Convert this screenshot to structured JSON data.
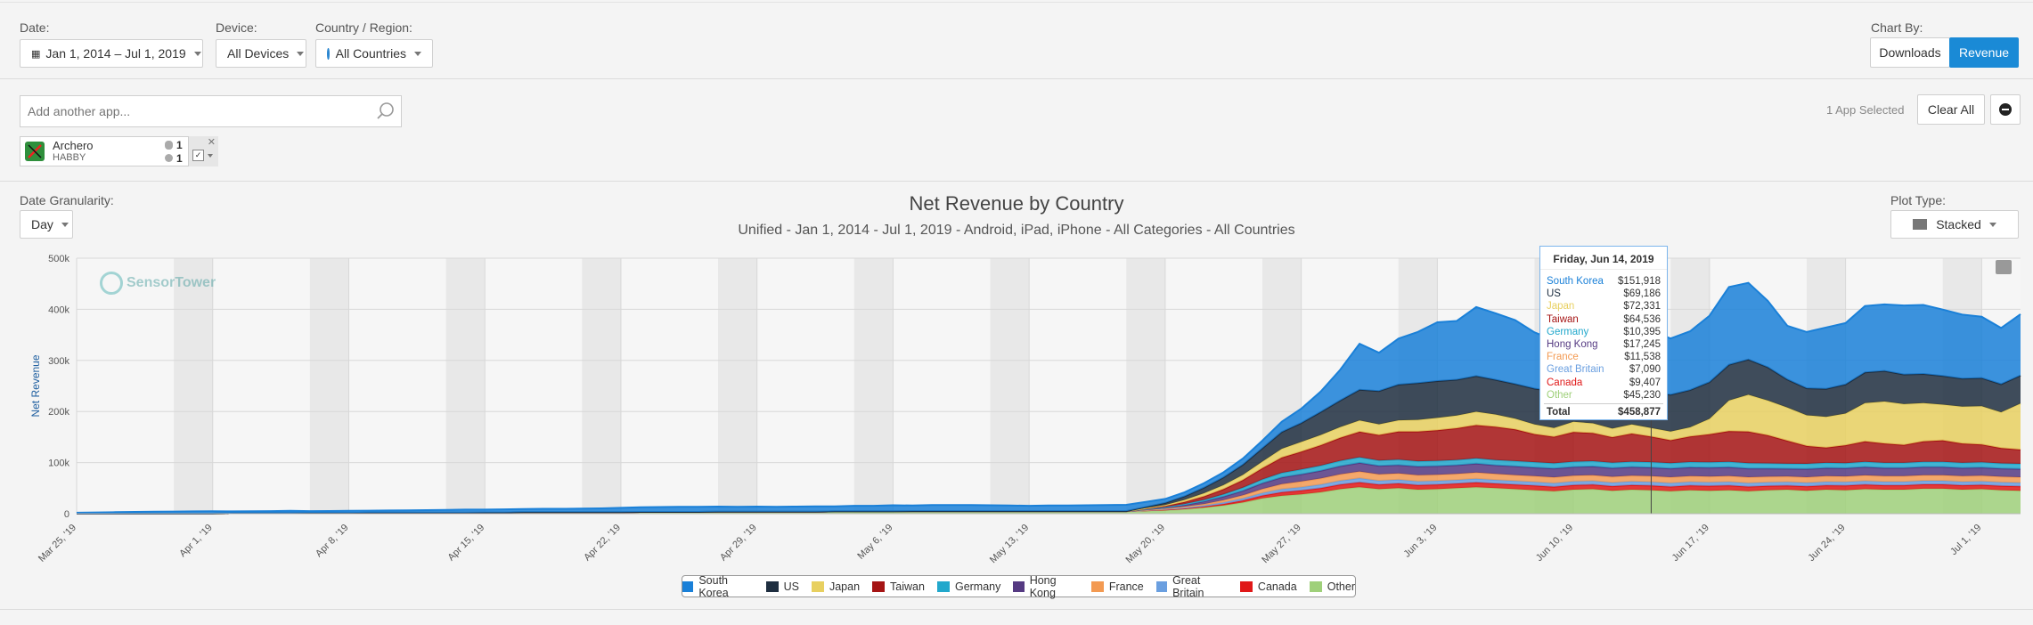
{
  "filters": {
    "date_label": "Date:",
    "date_value": "Jan 1, 2014 – Jul 1, 2019",
    "device_label": "Device:",
    "device_value": "All Devices",
    "country_label": "Country / Region:",
    "country_value": "All Countries",
    "chart_by_label": "Chart By:",
    "downloads_label": "Downloads",
    "revenue_label": "Revenue"
  },
  "search": {
    "placeholder": "Add another app...",
    "apps_selected": "1 App Selected",
    "clear_all": "Clear All"
  },
  "app": {
    "name": "Archero",
    "publisher": "HABBY",
    "ios_count": "1",
    "android_count": "1"
  },
  "granularity": {
    "label": "Date Granularity:",
    "value": "Day"
  },
  "plot_type": {
    "label": "Plot Type:",
    "value": "Stacked"
  },
  "title": "Net Revenue by Country",
  "subtitle": "Unified - Jan 1, 2014 - Jul 1, 2019 - Android, iPad, iPhone - All Categories - All Countries",
  "watermark": "SensorTower",
  "tooltip": {
    "date": "Friday, Jun 14, 2019",
    "rows": [
      {
        "name": "South Korea",
        "value": "$151,918"
      },
      {
        "name": "US",
        "value": "$69,186"
      },
      {
        "name": "Japan",
        "value": "$72,331"
      },
      {
        "name": "Taiwan",
        "value": "$64,536"
      },
      {
        "name": "Germany",
        "value": "$10,395"
      },
      {
        "name": "Hong Kong",
        "value": "$17,245"
      },
      {
        "name": "France",
        "value": "$11,538"
      },
      {
        "name": "Great Britain",
        "value": "$7,090"
      },
      {
        "name": "Canada",
        "value": "$9,407"
      },
      {
        "name": "Other",
        "value": "$45,230"
      }
    ],
    "total_label": "Total",
    "total_value": "$458,877"
  },
  "colors": {
    "South Korea": "#1a80d8",
    "US": "#1e2e40",
    "Japan": "#e8d060",
    "Taiwan": "#a51414",
    "Germany": "#22a8cc",
    "Hong Kong": "#553a82",
    "France": "#f39a52",
    "Great Britain": "#6a9fe0",
    "Canada": "#e01818",
    "Other": "#9fd07a"
  },
  "chart_data": {
    "type": "area",
    "title": "Net Revenue by Country",
    "subtitle": "Unified - Jan 1, 2014 - Jul 1, 2019 - Android, iPad, iPhone - All Categories - All Countries",
    "ylabel": "Net Revenue",
    "ylim": [
      0,
      500000
    ],
    "y_ticks": [
      "0",
      "100k",
      "200k",
      "300k",
      "400k",
      "500k"
    ],
    "x_ticks": [
      "Mar 25, '19",
      "Apr 1, '19",
      "Apr 8, '19",
      "Apr 15, '19",
      "Apr 22, '19",
      "Apr 29, '19",
      "May 6, '19",
      "May 13, '19",
      "May 20, '19",
      "May 27, '19",
      "Jun 3, '19",
      "Jun 10, '19",
      "Jun 17, '19",
      "Jun 24, '19",
      "Jul 1, '19"
    ],
    "stacked": true,
    "grid": true,
    "legend_position": "bottom",
    "x_start": "2019-03-25",
    "x_end": "2019-07-01",
    "series": [
      {
        "name": "Other",
        "values": [
          0,
          0,
          0,
          0,
          0,
          0,
          0,
          0,
          1000,
          1000,
          1000,
          1000,
          1500,
          1500,
          1500,
          2000,
          2000,
          2000,
          2000,
          2000,
          2000,
          2500,
          2500,
          3000,
          3000,
          3000,
          3000,
          3000,
          3000,
          3500,
          3500,
          3500,
          3500,
          4000,
          4000,
          4000,
          4000,
          4000,
          4000,
          4500,
          4500,
          4500,
          4500,
          5000,
          5000,
          5000,
          5000,
          5000,
          5000,
          5000,
          5000,
          5000,
          5000,
          5000,
          5000,
          6000,
          7000,
          9000,
          12000,
          16000,
          22000,
          30000,
          35000,
          38000,
          42000,
          48000,
          52000,
          48000,
          50000,
          47000,
          48000,
          50000,
          52000,
          50000,
          48000,
          46000,
          44000,
          47000,
          48000,
          45000,
          47000,
          46000,
          44000,
          46000,
          45000,
          46000,
          44000,
          46000,
          47000,
          45000,
          47000,
          46000,
          48000,
          47000,
          47000,
          49000,
          49000,
          47000,
          48000,
          46000,
          45000
        ]
      },
      {
        "name": "Canada",
        "values": [
          0,
          0,
          0,
          0,
          0,
          0,
          0,
          0,
          0,
          0,
          0,
          0,
          0,
          0,
          0,
          0,
          0,
          0,
          0,
          0,
          0,
          0,
          0,
          0,
          0,
          0,
          0,
          0,
          0,
          0,
          0,
          0,
          0,
          0,
          0,
          0,
          0,
          0,
          0,
          0,
          0,
          0,
          0,
          0,
          0,
          0,
          0,
          0,
          0,
          0,
          0,
          0,
          0,
          0,
          0,
          500,
          1000,
          1500,
          2000,
          3000,
          4000,
          5500,
          7000,
          7500,
          8000,
          9000,
          9500,
          9000,
          9200,
          9000,
          9000,
          9000,
          9200,
          9000,
          9000,
          9000,
          8800,
          9000,
          9000,
          8800,
          9000,
          9000,
          9000,
          9200,
          9300,
          9400,
          9000,
          8500,
          8000,
          8500,
          8500,
          9000,
          9000,
          8500,
          8500,
          8500,
          8500,
          8500,
          8500,
          8500,
          8500
        ]
      },
      {
        "name": "Great Britain",
        "values": [
          0,
          0,
          0,
          0,
          0,
          0,
          0,
          0,
          0,
          0,
          0,
          0,
          0,
          0,
          0,
          0,
          0,
          0,
          0,
          0,
          0,
          0,
          0,
          0,
          0,
          0,
          0,
          0,
          0,
          0,
          0,
          0,
          0,
          0,
          0,
          0,
          0,
          0,
          0,
          0,
          0,
          0,
          0,
          0,
          0,
          0,
          0,
          0,
          0,
          0,
          0,
          0,
          0,
          0,
          0,
          500,
          1000,
          1500,
          2000,
          3000,
          4000,
          5000,
          6000,
          6500,
          7000,
          7500,
          8000,
          7500,
          7500,
          7300,
          7200,
          7100,
          7300,
          7000,
          7000,
          7000,
          7000,
          7000,
          7000,
          7000,
          7000,
          7000,
          7000,
          7000,
          7100,
          7000,
          7000,
          7000,
          7000,
          7000,
          7000,
          7000,
          7000,
          7000,
          7000,
          7000,
          7000,
          7000,
          7000,
          7000,
          7000
        ]
      },
      {
        "name": "France",
        "values": [
          0,
          0,
          0,
          0,
          0,
          0,
          0,
          0,
          0,
          0,
          0,
          0,
          0,
          0,
          0,
          0,
          0,
          0,
          0,
          0,
          0,
          0,
          0,
          0,
          0,
          0,
          0,
          0,
          0,
          0,
          0,
          0,
          0,
          0,
          0,
          0,
          0,
          0,
          0,
          0,
          0,
          0,
          0,
          0,
          0,
          0,
          0,
          0,
          0,
          0,
          0,
          0,
          0,
          0,
          0,
          500,
          1000,
          2000,
          3000,
          4500,
          6000,
          8000,
          10000,
          11000,
          12000,
          12500,
          13000,
          12500,
          12000,
          12000,
          12000,
          11800,
          12000,
          11800,
          11600,
          11500,
          11500,
          11500,
          11500,
          11500,
          11500,
          11500,
          11500,
          11500,
          11500,
          11500,
          11500,
          11000,
          11000,
          11000,
          11000,
          11000,
          11000,
          11000,
          11000,
          11000,
          11000,
          11000,
          11000,
          11000,
          11000
        ]
      },
      {
        "name": "Hong Kong",
        "values": [
          0,
          0,
          0,
          0,
          0,
          0,
          0,
          0,
          0,
          0,
          0,
          0,
          0,
          0,
          0,
          0,
          0,
          0,
          0,
          0,
          0,
          0,
          0,
          0,
          0,
          0,
          0,
          0,
          0,
          0,
          0,
          0,
          0,
          0,
          0,
          0,
          0,
          0,
          0,
          0,
          0,
          0,
          0,
          0,
          0,
          0,
          0,
          0,
          0,
          0,
          0,
          0,
          0,
          0,
          0,
          1000,
          2000,
          3000,
          5000,
          7000,
          9000,
          11000,
          13000,
          14000,
          15000,
          16000,
          17000,
          16500,
          16500,
          17000,
          17000,
          17000,
          17500,
          17000,
          17000,
          17000,
          17000,
          17000,
          17000,
          17000,
          17000,
          17000,
          17000,
          17000,
          17200,
          17200,
          17000,
          16000,
          15000,
          16000,
          16000,
          16000,
          16500,
          16000,
          16000,
          16000,
          16000,
          16000,
          16000,
          16000,
          16000
        ]
      },
      {
        "name": "Germany",
        "values": [
          0,
          0,
          0,
          0,
          0,
          0,
          0,
          0,
          0,
          0,
          0,
          0,
          0,
          0,
          0,
          0,
          0,
          0,
          0,
          0,
          0,
          0,
          0,
          0,
          0,
          0,
          0,
          0,
          0,
          0,
          0,
          0,
          0,
          0,
          0,
          0,
          0,
          0,
          0,
          0,
          0,
          0,
          0,
          0,
          0,
          0,
          0,
          0,
          0,
          0,
          0,
          0,
          0,
          0,
          0,
          500,
          1000,
          2000,
          3000,
          4500,
          6000,
          7500,
          9000,
          9500,
          10000,
          10500,
          11000,
          10500,
          10500,
          10400,
          10300,
          10300,
          10400,
          10300,
          10300,
          10300,
          10300,
          10300,
          10300,
          10300,
          10300,
          10300,
          10300,
          10300,
          10400,
          10400,
          10300,
          10000,
          9800,
          10000,
          10000,
          10000,
          10000,
          10000,
          10000,
          10000,
          10000,
          10000,
          10000,
          10000,
          10000
        ]
      },
      {
        "name": "Taiwan",
        "values": [
          0,
          0,
          0,
          0,
          0,
          0,
          0,
          0,
          0,
          0,
          0,
          0,
          0,
          0,
          0,
          0,
          0,
          0,
          0,
          0,
          0,
          0,
          0,
          0,
          0,
          0,
          0,
          0,
          0,
          0,
          0,
          0,
          0,
          0,
          0,
          0,
          0,
          0,
          0,
          0,
          0,
          0,
          0,
          0,
          0,
          0,
          0,
          0,
          0,
          0,
          0,
          0,
          0,
          0,
          0,
          1000,
          2000,
          4000,
          7000,
          10000,
          15000,
          22000,
          30000,
          35000,
          40000,
          45000,
          50000,
          50000,
          55000,
          58000,
          60000,
          62000,
          65000,
          65000,
          62000,
          55000,
          52000,
          58000,
          55000,
          50000,
          55000,
          50000,
          45000,
          50000,
          55000,
          60000,
          62000,
          55000,
          45000,
          35000,
          30000,
          35000,
          40000,
          38000,
          35000,
          40000,
          42000,
          38000,
          35000,
          30000,
          28000
        ]
      },
      {
        "name": "Japan",
        "values": [
          0,
          0,
          0,
          0,
          0,
          0,
          0,
          0,
          0,
          0,
          0,
          0,
          0,
          0,
          0,
          0,
          0,
          0,
          0,
          0,
          0,
          0,
          0,
          0,
          0,
          0,
          0,
          0,
          0,
          0,
          0,
          0,
          0,
          0,
          0,
          0,
          0,
          0,
          0,
          0,
          0,
          0,
          0,
          0,
          0,
          0,
          0,
          0,
          0,
          0,
          0,
          0,
          0,
          0,
          0,
          1000,
          2000,
          4000,
          6000,
          8000,
          10000,
          13000,
          17000,
          19000,
          20000,
          21000,
          22000,
          21000,
          22000,
          23000,
          24000,
          25000,
          26000,
          24000,
          21000,
          19000,
          17000,
          20000,
          19000,
          17000,
          18000,
          17000,
          17000,
          18000,
          30000,
          60000,
          72000,
          68000,
          65000,
          60000,
          60000,
          62000,
          75000,
          82000,
          80000,
          75000,
          70000,
          72000,
          75000,
          70000,
          90000
        ]
      },
      {
        "name": "US",
        "values": [
          0,
          0,
          0,
          0,
          0,
          0,
          0,
          0,
          0,
          0,
          0,
          0,
          0,
          0,
          0,
          0,
          0,
          0,
          0,
          0,
          0,
          0,
          0,
          0,
          0,
          0,
          0,
          0,
          0,
          0,
          0,
          0,
          0,
          0,
          0,
          0,
          0,
          0,
          0,
          0,
          0,
          0,
          0,
          0,
          0,
          0,
          0,
          0,
          0,
          0,
          0,
          0,
          0,
          0,
          0,
          2000,
          4000,
          7000,
          11000,
          15000,
          20000,
          26000,
          33000,
          37000,
          45000,
          52000,
          60000,
          65000,
          70000,
          72000,
          72000,
          70000,
          70000,
          68000,
          68000,
          70000,
          72000,
          73000,
          72000,
          70000,
          70000,
          70000,
          72000,
          73000,
          72000,
          70000,
          69000,
          65000,
          55000,
          53000,
          55000,
          57000,
          60000,
          60000,
          58000,
          57000,
          56000,
          55000,
          55000,
          55000,
          55000
        ]
      },
      {
        "name": "South Korea",
        "values": [
          2000,
          2500,
          3000,
          3500,
          4000,
          4200,
          4500,
          4700,
          3500,
          3800,
          4000,
          4500,
          3500,
          3800,
          4000,
          4000,
          4200,
          4500,
          5000,
          5500,
          6000,
          5500,
          6000,
          6000,
          6500,
          6500,
          7000,
          7500,
          8500,
          9000,
          9500,
          10000,
          10000,
          10000,
          9500,
          10000,
          9500,
          10000,
          10500,
          10000,
          11000,
          11000,
          12000,
          11000,
          12000,
          12000,
          12000,
          11500,
          11000,
          10500,
          11000,
          11000,
          11500,
          12000,
          12500,
          10000,
          8000,
          8000,
          9000,
          10000,
          12000,
          15000,
          20000,
          28000,
          40000,
          60000,
          90000,
          75000,
          90000,
          100000,
          115000,
          115000,
          135000,
          130000,
          125000,
          110000,
          100000,
          115000,
          120000,
          115000,
          125000,
          120000,
          110000,
          115000,
          130000,
          152000,
          150000,
          130000,
          105000,
          110000,
          120000,
          120000,
          130000,
          130000,
          135000,
          135000,
          130000,
          125000,
          120000,
          110000,
          120000
        ]
      }
    ]
  }
}
